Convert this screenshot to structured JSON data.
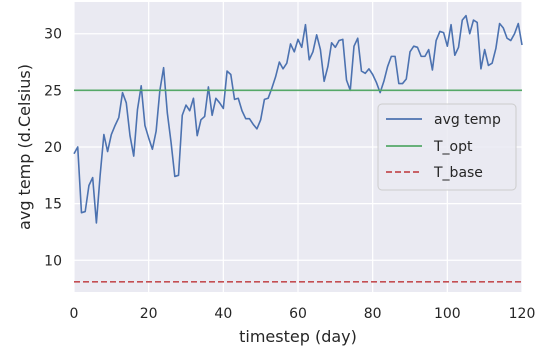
{
  "chart_data": {
    "type": "line",
    "xlabel": "timestep (day)",
    "ylabel": "avg temp (d.Celsius)",
    "xlim": [
      0,
      120
    ],
    "ylim": [
      7.2,
      32.8
    ],
    "xticks": [
      0,
      20,
      40,
      60,
      80,
      100,
      120
    ],
    "yticks": [
      10,
      15,
      20,
      25,
      30
    ],
    "grid": true,
    "legend_position": "center-right",
    "colors": {
      "background": "#eaeaf2",
      "grid": "#ffffff",
      "avg_temp": "#4c72b0",
      "t_opt": "#55a868",
      "t_base": "#c44e52"
    },
    "series": [
      {
        "name": "avg temp",
        "style": "solid",
        "x": [
          0,
          1,
          2,
          3,
          4,
          5,
          6,
          7,
          8,
          9,
          10,
          11,
          12,
          13,
          14,
          15,
          16,
          17,
          18,
          19,
          20,
          21,
          22,
          23,
          24,
          25,
          26,
          27,
          28,
          29,
          30,
          31,
          32,
          33,
          34,
          35,
          36,
          37,
          38,
          39,
          40,
          41,
          42,
          43,
          44,
          45,
          46,
          47,
          48,
          49,
          50,
          51,
          52,
          53,
          54,
          55,
          56,
          57,
          58,
          59,
          60,
          61,
          62,
          63,
          64,
          65,
          66,
          67,
          68,
          69,
          70,
          71,
          72,
          73,
          74,
          75,
          76,
          77,
          78,
          79,
          80,
          81,
          82,
          83,
          84,
          85,
          86,
          87,
          88,
          89,
          90,
          91,
          92,
          93,
          94,
          95,
          96,
          97,
          98,
          99,
          100,
          101,
          102,
          103,
          104,
          105,
          106,
          107,
          108,
          109,
          110,
          111,
          112,
          113,
          114,
          115,
          116,
          117,
          118,
          119,
          120
        ],
        "values": [
          19.4,
          20.0,
          14.2,
          14.3,
          16.6,
          17.3,
          13.3,
          17.5,
          21.1,
          19.6,
          21.1,
          21.9,
          22.6,
          24.8,
          23.9,
          21.0,
          19.2,
          23.3,
          25.4,
          21.9,
          20.8,
          19.8,
          21.4,
          25.0,
          27.0,
          23.0,
          20.4,
          17.4,
          17.5,
          22.8,
          23.7,
          23.2,
          24.3,
          21.0,
          22.4,
          22.7,
          25.3,
          22.8,
          24.3,
          23.9,
          23.4,
          26.7,
          26.4,
          24.2,
          24.3,
          23.2,
          22.5,
          22.5,
          22.0,
          21.6,
          22.4,
          24.2,
          24.3,
          25.2,
          26.2,
          27.5,
          26.9,
          27.4,
          29.1,
          28.4,
          29.5,
          28.8,
          30.8,
          27.7,
          28.4,
          29.9,
          28.6,
          25.8,
          27.1,
          29.2,
          28.8,
          29.4,
          29.5,
          25.9,
          25.0,
          28.9,
          29.6,
          26.7,
          26.5,
          26.9,
          26.4,
          25.7,
          24.8,
          25.8,
          27.1,
          28.0,
          28.0,
          25.6,
          25.6,
          26.0,
          28.4,
          28.9,
          28.8,
          28.0,
          28.0,
          28.6,
          26.8,
          29.4,
          30.2,
          30.1,
          28.9,
          30.8,
          28.1,
          28.8,
          31.2,
          31.6,
          30.0,
          31.2,
          31.0,
          26.9,
          28.6,
          27.2,
          27.4,
          28.7,
          30.9,
          30.5,
          29.6,
          29.4,
          30.0,
          30.9,
          29.0
        ]
      },
      {
        "name": "T_opt",
        "style": "solid",
        "x": [
          0,
          120
        ],
        "values": [
          25.0,
          25.0
        ]
      },
      {
        "name": "T_base",
        "style": "dashed",
        "x": [
          0,
          120
        ],
        "values": [
          8.1,
          8.1
        ]
      }
    ]
  }
}
